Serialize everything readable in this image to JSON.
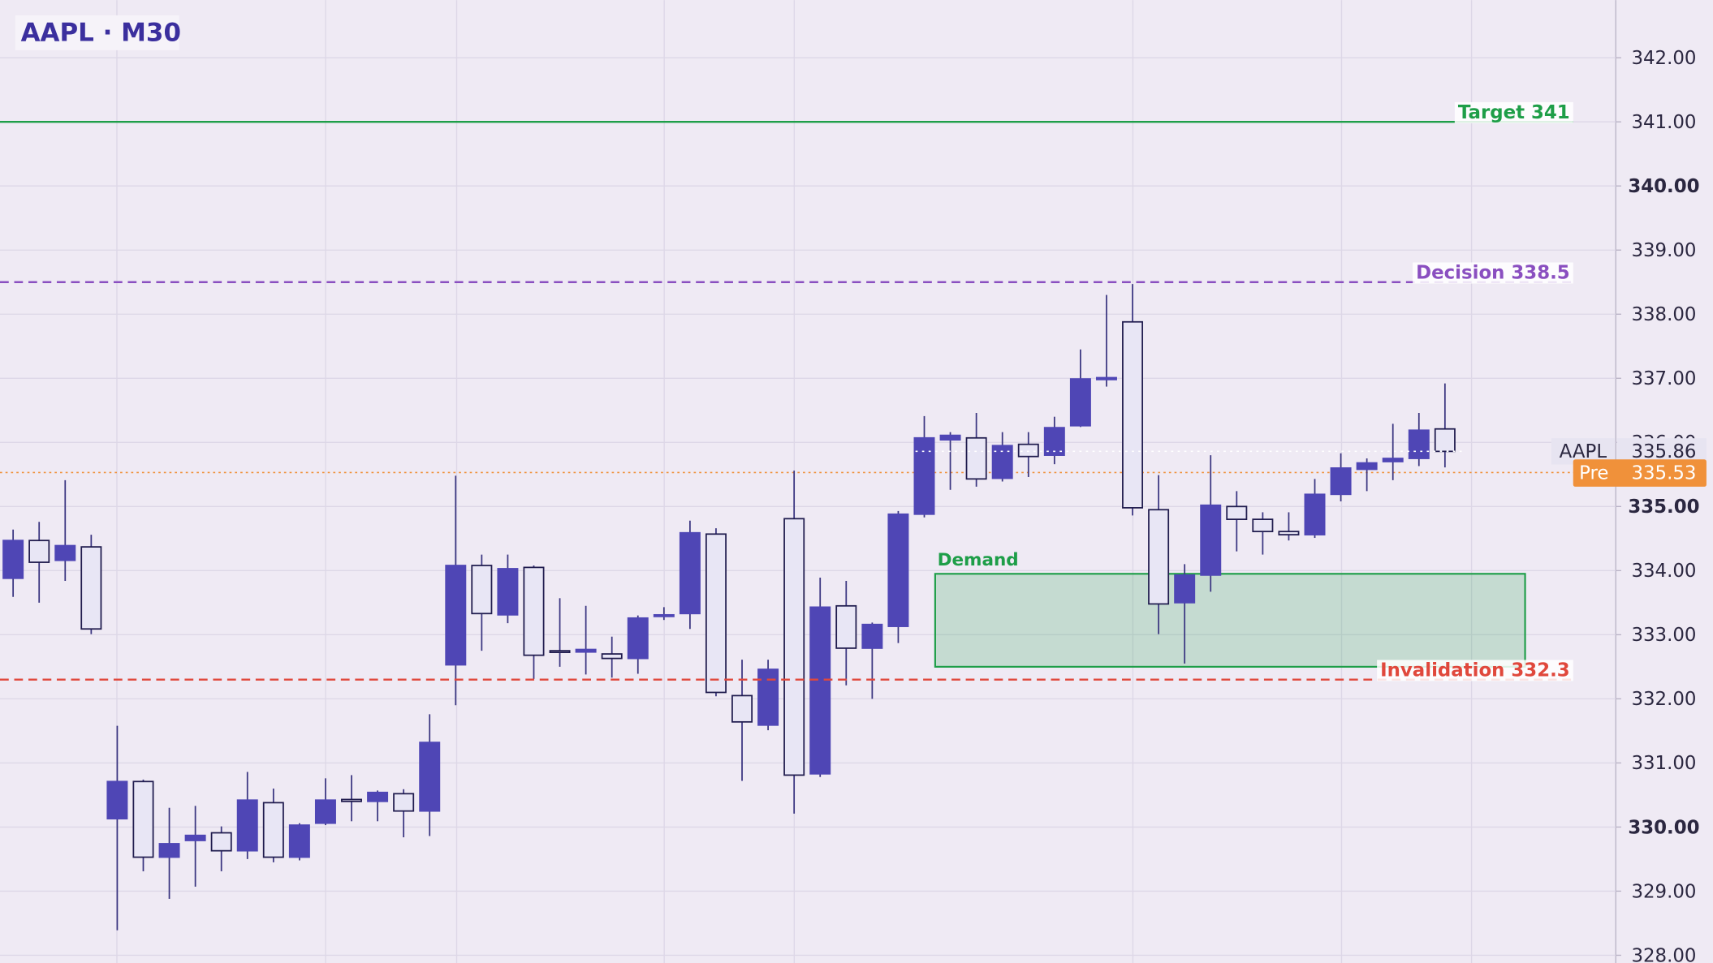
{
  "chart_data": {
    "type": "candlestick",
    "title": "AAPL · M30",
    "open": [
      333.88,
      334.47,
      334.16,
      334.37,
      330.13,
      330.71,
      329.53,
      329.79,
      329.91,
      329.63,
      330.38,
      329.53,
      330.06,
      330.43,
      330.4,
      330.52,
      330.25,
      332.53,
      334.08,
      333.31,
      334.05,
      332.75,
      332.73,
      332.7,
      332.63,
      333.3,
      333.33,
      334.57,
      332.05,
      331.59,
      334.81,
      330.83,
      333.45,
      332.79,
      333.13,
      334.88,
      336.04,
      336.07,
      335.44,
      335.97,
      335.8,
      336.26,
      336.98,
      337.88,
      334.95,
      333.5,
      333.93,
      335.0,
      334.8,
      334.61,
      334.56,
      335.19,
      335.58,
      335.7,
      335.75,
      336.21
    ],
    "high": [
      334.64,
      334.76,
      335.41,
      334.56,
      331.58,
      330.74,
      330.3,
      330.33,
      330.01,
      330.86,
      330.6,
      330.06,
      330.76,
      330.81,
      330.57,
      330.59,
      331.76,
      335.48,
      334.25,
      334.25,
      334.08,
      333.57,
      333.45,
      332.97,
      333.3,
      333.43,
      334.78,
      334.66,
      332.61,
      332.61,
      335.56,
      333.89,
      333.84,
      333.19,
      334.93,
      336.41,
      336.16,
      336.46,
      336.16,
      336.16,
      336.4,
      337.45,
      338.3,
      338.47,
      335.49,
      334.1,
      335.8,
      335.24,
      334.91,
      334.91,
      335.43,
      335.83,
      335.75,
      336.29,
      336.46,
      336.92
    ],
    "low": [
      333.59,
      333.5,
      333.84,
      333.01,
      328.39,
      329.31,
      328.88,
      329.07,
      329.31,
      329.5,
      329.45,
      329.48,
      330.03,
      330.09,
      330.09,
      329.84,
      329.86,
      331.9,
      332.75,
      333.18,
      332.31,
      332.5,
      332.38,
      332.33,
      332.39,
      333.23,
      333.09,
      332.04,
      330.72,
      331.51,
      330.21,
      330.78,
      332.21,
      332.0,
      332.87,
      334.83,
      335.26,
      335.31,
      335.39,
      335.46,
      335.66,
      336.24,
      336.87,
      334.86,
      333.01,
      332.55,
      333.67,
      334.3,
      334.25,
      334.47,
      334.51,
      335.08,
      335.24,
      335.41,
      335.63,
      335.61
    ],
    "close": [
      334.47,
      334.13,
      334.39,
      333.09,
      330.71,
      329.53,
      329.74,
      329.87,
      329.63,
      330.42,
      329.53,
      330.03,
      330.42,
      330.4,
      330.54,
      330.25,
      331.32,
      334.08,
      333.33,
      334.03,
      332.68,
      332.73,
      332.77,
      332.63,
      333.26,
      333.31,
      334.59,
      332.1,
      331.64,
      332.46,
      330.81,
      333.43,
      332.79,
      333.16,
      334.88,
      336.07,
      336.11,
      335.43,
      335.95,
      335.78,
      336.23,
      336.99,
      337.01,
      334.98,
      333.48,
      333.93,
      335.02,
      334.8,
      334.61,
      334.56,
      335.19,
      335.6,
      335.68,
      335.75,
      336.19,
      335.86
    ],
    "up_color": "#4f46b5",
    "down_color": "#e8e6f5",
    "ylim": [
      327.88,
      342.9
    ],
    "yticks": [
      {
        "value": 328,
        "label": "328.00"
      },
      {
        "value": 329,
        "label": "329.00"
      },
      {
        "value": 330,
        "label": "330.00"
      },
      {
        "value": 331,
        "label": "331.00"
      },
      {
        "value": 332,
        "label": "332.00"
      },
      {
        "value": 333,
        "label": "333.00"
      },
      {
        "value": 334,
        "label": "334.00"
      },
      {
        "value": 335,
        "label": "335.00"
      },
      {
        "value": 336,
        "label": "336.00"
      },
      {
        "value": 337,
        "label": "337.00"
      },
      {
        "value": 338,
        "label": "338.00"
      },
      {
        "value": 339,
        "label": "339.00"
      },
      {
        "value": 340,
        "label": "340.00"
      },
      {
        "value": 341,
        "label": "341.00"
      },
      {
        "value": 342,
        "label": "342.00"
      }
    ],
    "grid": true,
    "levels": [
      {
        "label": "Target 341",
        "value": 341,
        "color": "#1e9e48",
        "dashed": false
      },
      {
        "label": "Decision 338.5",
        "value": 338.5,
        "color": "#8a4fc0",
        "dashed": true
      },
      {
        "label": "Invalidation 332.3",
        "value": 332.3,
        "color": "#e0483c",
        "dashed": true
      }
    ],
    "zone": {
      "label": "Demand",
      "low": 332.5,
      "high": 333.95,
      "color": "#1e9e48"
    },
    "last_price": {
      "label": "AAPL",
      "value": 335.86
    },
    "pre_price": {
      "label": "Pre",
      "value": 335.53,
      "color": "#f0913a"
    }
  }
}
